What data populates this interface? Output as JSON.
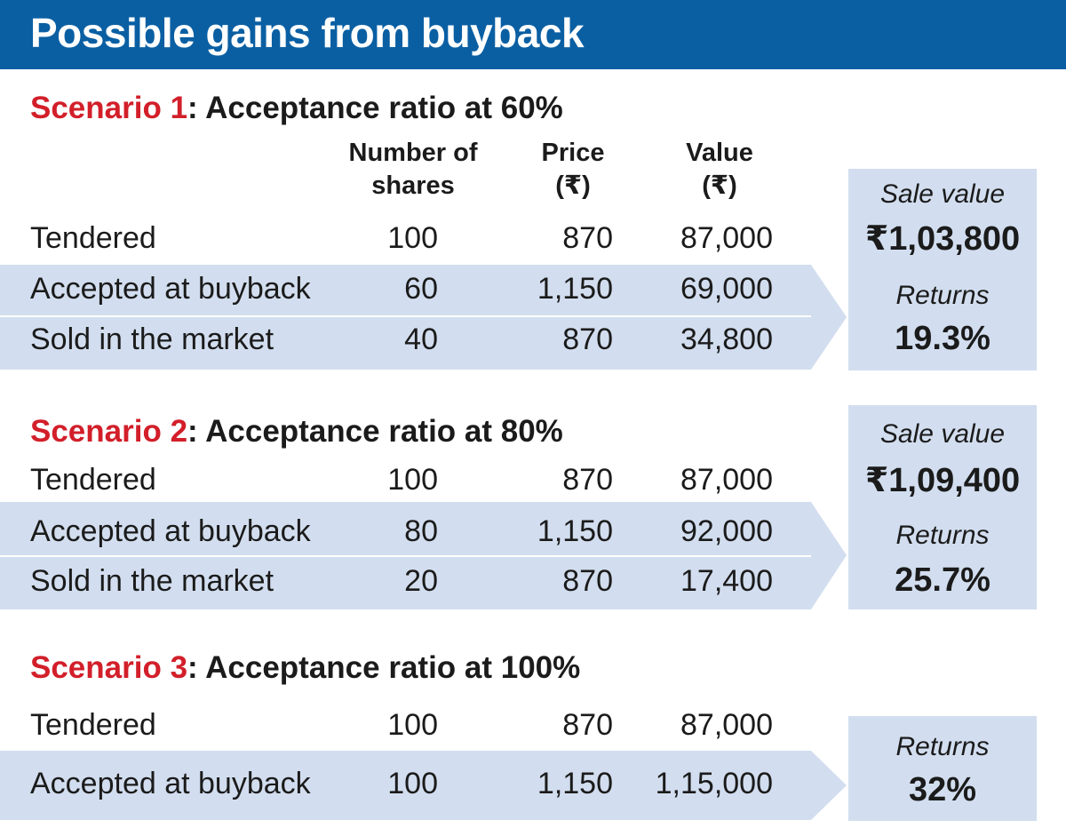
{
  "header": {
    "title": "Possible gains from buyback"
  },
  "columns": {
    "shares": [
      "Number of",
      "shares"
    ],
    "price": [
      "Price",
      "(₹)"
    ],
    "value": [
      "Value",
      "(₹)"
    ]
  },
  "scenarios": [
    {
      "label": "Scenario 1",
      "title": ": Acceptance ratio at 60%",
      "rows": [
        {
          "label": "Tendered",
          "shares": "100",
          "price": "870",
          "value": "87,000"
        },
        {
          "label": "Accepted at buyback",
          "shares": "60",
          "price": "1,150",
          "value": "69,000"
        },
        {
          "label": "Sold in the market",
          "shares": "40",
          "price": "870",
          "value": "34,800"
        }
      ],
      "sale_value_label": "Sale value",
      "sale_value": "₹1,03,800",
      "returns_label": "Returns",
      "returns": "19.3%"
    },
    {
      "label": "Scenario 2",
      "title": ": Acceptance ratio at 80%",
      "rows": [
        {
          "label": "Tendered",
          "shares": "100",
          "price": "870",
          "value": "87,000"
        },
        {
          "label": "Accepted at buyback",
          "shares": "80",
          "price": "1,150",
          "value": "92,000"
        },
        {
          "label": "Sold in the market",
          "shares": "20",
          "price": "870",
          "value": "17,400"
        }
      ],
      "sale_value_label": "Sale value",
      "sale_value": "₹1,09,400",
      "returns_label": "Returns",
      "returns": "25.7%"
    },
    {
      "label": "Scenario 3",
      "title": ": Acceptance ratio at 100%",
      "rows": [
        {
          "label": "Tendered",
          "shares": "100",
          "price": "870",
          "value": "87,000"
        },
        {
          "label": "Accepted at buyback",
          "shares": "100",
          "price": "1,150",
          "value": "1,15,000"
        }
      ],
      "returns_label": "Returns",
      "returns": "32%"
    }
  ]
}
